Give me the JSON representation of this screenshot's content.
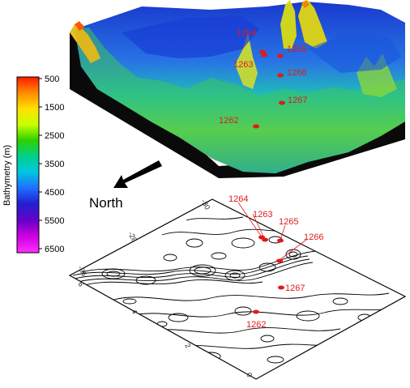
{
  "colorbar": {
    "title": "Bathymetry (m)",
    "ticks": [
      "500",
      "1500",
      "2500",
      "3500",
      "4500",
      "5500",
      "6500"
    ],
    "colors": [
      "#ff1a00",
      "#ff8a00",
      "#ffe000",
      "#c8ff00",
      "#30d000",
      "#00d08a",
      "#00c8e0",
      "#2070ff",
      "#2020d0",
      "#6a00c8",
      "#d000e0",
      "#ff30ff"
    ]
  },
  "north_label": "North",
  "sites": [
    {
      "id": "1262",
      "label": "1262"
    },
    {
      "id": "1263",
      "label": "1263"
    },
    {
      "id": "1264",
      "label": "1264"
    },
    {
      "id": "1265",
      "label": "1265"
    },
    {
      "id": "1266",
      "label": "1266"
    },
    {
      "id": "1267",
      "label": "1267"
    }
  ],
  "contour_axes": {
    "top_ticks": [
      "-30",
      "-28",
      "-26"
    ],
    "left_ticks": [
      "6",
      "4",
      "2",
      "0"
    ]
  },
  "colors": {
    "site_marker": "#e21a1a",
    "contour": "#000000"
  }
}
